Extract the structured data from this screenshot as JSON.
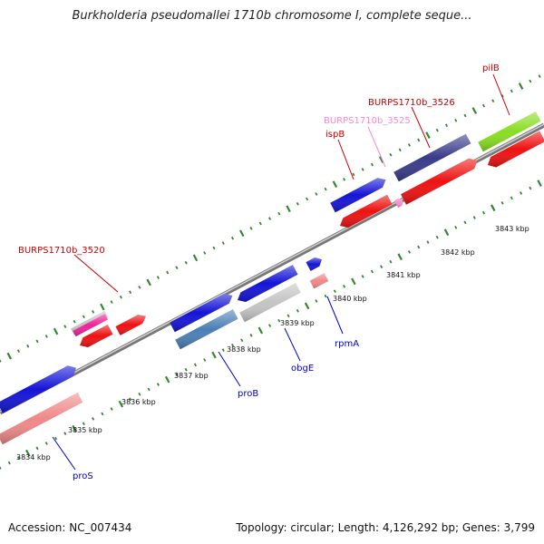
{
  "title": "Burkholderia pseudomallei 1710b chromosome I, complete seque...",
  "footer": {
    "accession": "Accession: NC_007434",
    "info": "Topology: circular; Length: 4,126,292 bp; Genes: 3,799"
  },
  "kbp_labels": [
    "3834 kbp",
    "3835 kbp",
    "3836 kbp",
    "3837 kbp",
    "3838 kbp",
    "3839 kbp",
    "3840 kbp",
    "3841 kbp",
    "3842 kbp",
    "3843 kbp"
  ],
  "gene_labels": [
    {
      "text": "BURPS1710b_3520",
      "color": "#cc0000"
    },
    {
      "text": "ispB",
      "color": "#cc0000"
    },
    {
      "text": "BURPS1710b_3525",
      "color": "#ff88cc"
    },
    {
      "text": "BURPS1710b_3526",
      "color": "#cc0000"
    },
    {
      "text": "pilB",
      "color": "#cc0000"
    },
    {
      "text": "proS",
      "color": "#0000cc"
    },
    {
      "text": "proB",
      "color": "#0000cc"
    },
    {
      "text": "obgE",
      "color": "#0000cc"
    },
    {
      "text": "rpmA",
      "color": "#0000cc"
    }
  ],
  "colors": {
    "blue": "#1414d6",
    "red": "#ee1111",
    "pink": "#ef8888",
    "magenta": "#ee2299",
    "steel": "#4a7fb5",
    "gray": "#c4c4c4",
    "indigo": "#3a3a8a",
    "lime": "#88dd22",
    "tick": "#338833",
    "backbone": "#888888"
  }
}
